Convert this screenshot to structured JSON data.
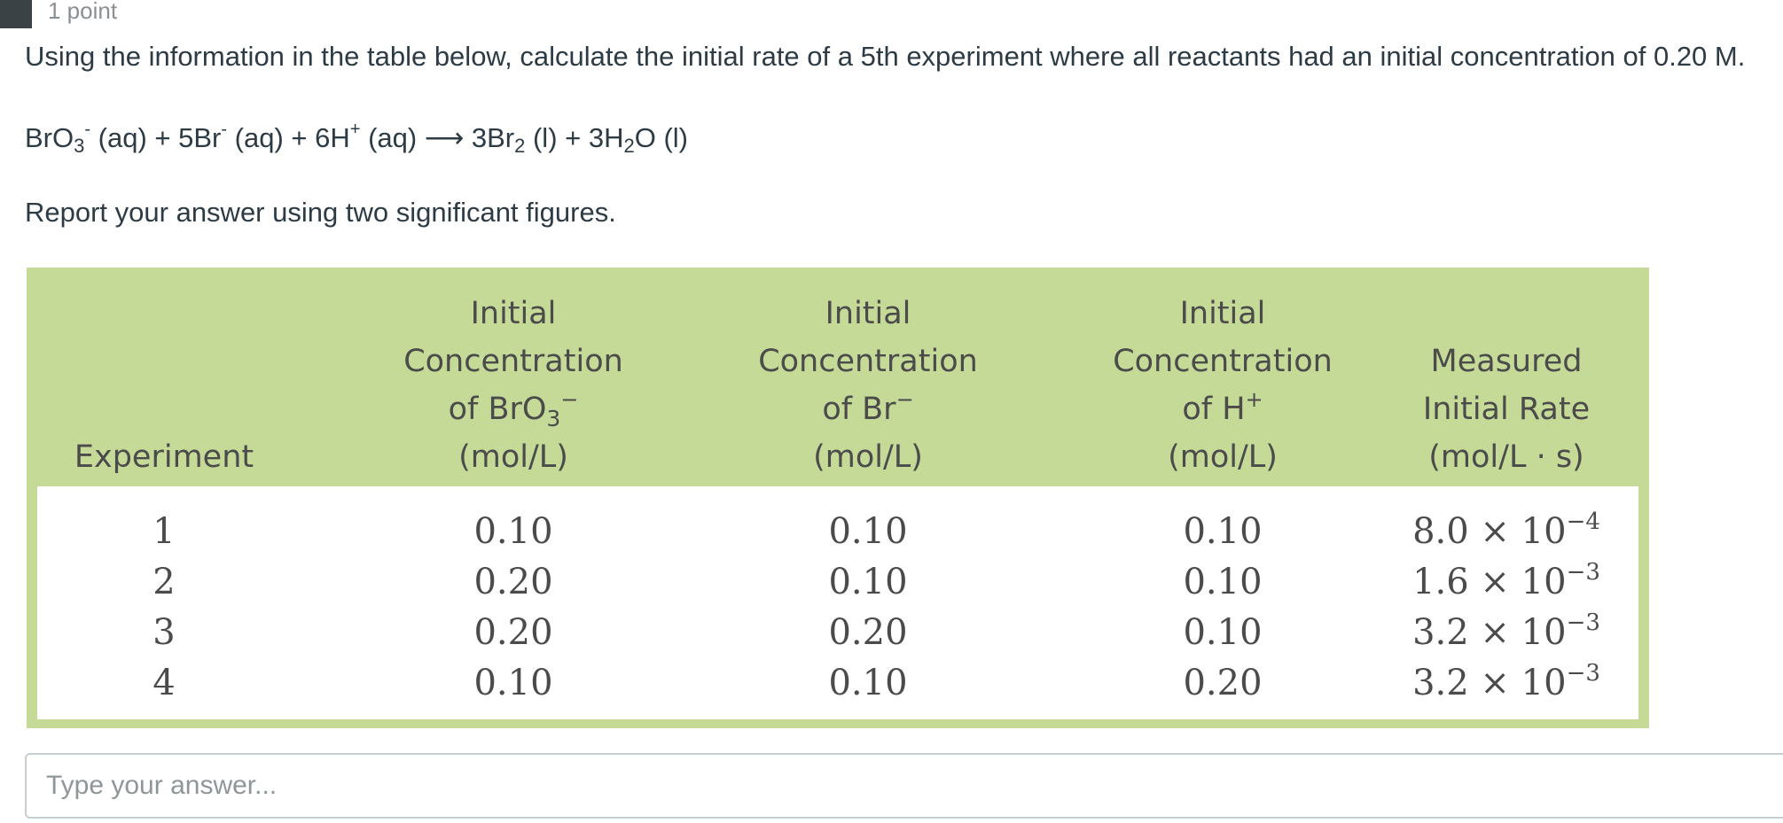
{
  "header": {
    "points": "1 point"
  },
  "question": {
    "text": "Using the information in the table below, calculate the initial rate of a 5th experiment where all reactants had an initial concentration of 0.20 M.",
    "equation": {
      "r1_main": "BrO",
      "r1_sub": "3",
      "r1_sup": "-",
      "r1_state": " (aq) + ",
      "r2_main": "5Br",
      "r2_sup": "-",
      "r2_state": " (aq) + ",
      "r3_main": "6H",
      "r3_sup": "+",
      "r3_state": " (aq) ",
      "arrow": "⟶",
      "p1_main": " 3Br",
      "p1_sub": "2",
      "p1_state": " (l) + ",
      "p2_main": "3H",
      "p2_sub": "2",
      "p2_tail": "O (l)"
    },
    "instruction": "Report your answer using two significant figures."
  },
  "table": {
    "headers": {
      "experiment": "Experiment",
      "col2": {
        "l1": "Initial",
        "l2": "Concentration",
        "l3_main": "of BrO",
        "l3_sub": "3",
        "l3_sup": "−",
        "l4": "(mol/L)"
      },
      "col3": {
        "l1": "Initial",
        "l2": "Concentration",
        "l3_main": "of Br",
        "l3_sup": "−",
        "l4": "(mol/L)"
      },
      "col4": {
        "l1": "Initial",
        "l2": "Concentration",
        "l3_main": "of H",
        "l3_sup": "+",
        "l4": "(mol/L)"
      },
      "col5": {
        "l1": "Measured",
        "l2": "Initial Rate",
        "l3": "(mol/L · s)"
      }
    },
    "rows": [
      {
        "exp": "1",
        "bro3": "0.10",
        "br": "0.10",
        "h": "0.10",
        "rate_base": "8.0 × 10",
        "rate_exp": "−4"
      },
      {
        "exp": "2",
        "bro3": "0.20",
        "br": "0.10",
        "h": "0.10",
        "rate_base": "1.6 × 10",
        "rate_exp": "−3"
      },
      {
        "exp": "3",
        "bro3": "0.20",
        "br": "0.20",
        "h": "0.10",
        "rate_base": "3.2 × 10",
        "rate_exp": "−3"
      },
      {
        "exp": "4",
        "bro3": "0.10",
        "br": "0.10",
        "h": "0.20",
        "rate_base": "3.2 × 10",
        "rate_exp": "−3"
      }
    ]
  },
  "answer": {
    "placeholder": "Type your answer..."
  },
  "colors": {
    "table_header_bg": "#c6da98",
    "text": "#2d3b45"
  }
}
